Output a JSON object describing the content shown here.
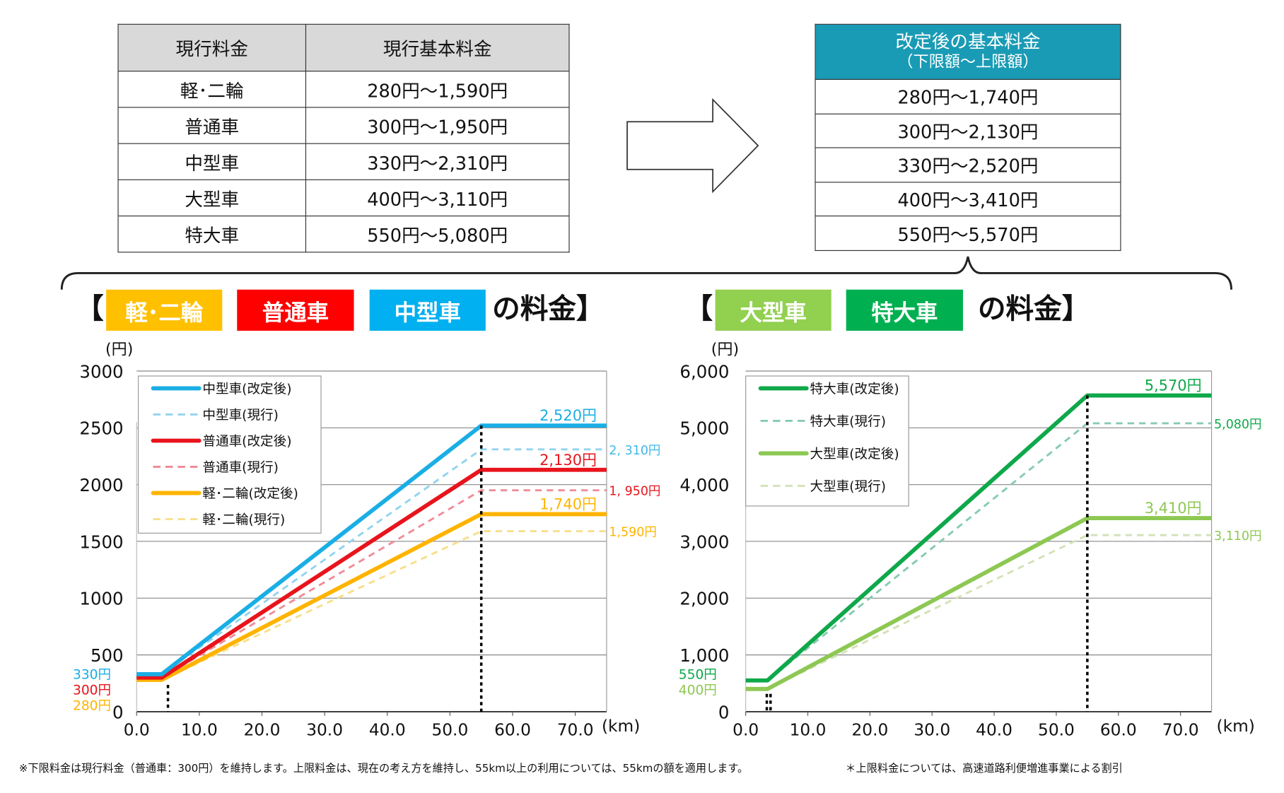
{
  "current_table": {
    "headers": [
      "現行料金",
      "現行基本料金"
    ],
    "rows": [
      [
        "軽･二輪",
        "280円～1,590円"
      ],
      [
        "普通車",
        "300円～1,950円"
      ],
      [
        "中型車",
        "330円～2,310円"
      ],
      [
        "大型車",
        "400円～3,110円"
      ],
      [
        "特大車",
        "550円～5,080円"
      ]
    ]
  },
  "new_table": {
    "header": "改定後の基本料金",
    "subheader": "（下限額～上限額）",
    "rows": [
      "280円～1,740円",
      "300円～2,130円",
      "330円～2,520円",
      "400円～3,410円",
      "550円～5,570円"
    ]
  },
  "left_heading": {
    "open": "【",
    "tags": [
      "軽･二輪",
      "普通車",
      "中型車"
    ],
    "suffix": "の料金】"
  },
  "right_heading": {
    "open": "【",
    "tags": [
      "大型車",
      "特大車"
    ],
    "suffix": "の料金】"
  },
  "tag_colors": [
    "#ffc000",
    "#ff0000",
    "#00b0f0",
    "#92d050",
    "#00b050"
  ],
  "footnotes": {
    "left": "※下限料金は現行料金（普通車：300円）を維持します。上限料金は、現在の考え方を維持し、55km以上の利用については、55kmの額を適用します。",
    "right": "＊上限料金については、高速道路利便増進事業による割引"
  },
  "chart_data": [
    {
      "type": "line",
      "ylabel": "(円)",
      "xlabel": "(km)",
      "xlim": [
        0,
        75
      ],
      "ylim": [
        0,
        3000
      ],
      "yticks": [
        "0",
        "500",
        "1000",
        "1500",
        "2000",
        "2500",
        "3000"
      ],
      "ytick_values": [
        0,
        500,
        1000,
        1500,
        2000,
        2500,
        3000
      ],
      "xticks": [
        "0.0",
        "10.0",
        "20.0",
        "30.0",
        "40.0",
        "50.0",
        "60.0",
        "70.0"
      ],
      "xtick_values": [
        0,
        10,
        20,
        30,
        40,
        50,
        60,
        70
      ],
      "grid": "horizontal",
      "legend": "top-left",
      "dotted_markers_km": [
        5,
        55
      ],
      "series": [
        {
          "name": "中型車(改定後)",
          "style": "solid",
          "color": "#1aaee5",
          "x": [
            0,
            4,
            55,
            75
          ],
          "y": [
            330,
            330,
            2520,
            2520
          ]
        },
        {
          "name": "中型車(現行)",
          "style": "dashed",
          "color": "#92d4ee",
          "x": [
            0,
            4,
            55,
            75
          ],
          "y": [
            330,
            330,
            2310,
            2310
          ]
        },
        {
          "name": "普通車(改定後)",
          "style": "solid",
          "color": "#e8141c",
          "x": [
            0,
            4,
            55,
            75
          ],
          "y": [
            300,
            300,
            2130,
            2130
          ]
        },
        {
          "name": "普通車(現行)",
          "style": "dashed",
          "color": "#ef8d97",
          "x": [
            0,
            4,
            55,
            75
          ],
          "y": [
            300,
            300,
            1950,
            1950
          ]
        },
        {
          "name": "軽･二輪(改定後)",
          "style": "solid",
          "color": "#ffb400",
          "x": [
            0,
            4,
            55,
            75
          ],
          "y": [
            280,
            280,
            1740,
            1740
          ]
        },
        {
          "name": "軽･二輪(現行)",
          "style": "dashed",
          "color": "#f7df8c",
          "x": [
            0,
            4,
            55,
            75
          ],
          "y": [
            280,
            280,
            1590,
            1590
          ]
        }
      ],
      "labels": [
        {
          "text": "2,520円",
          "color": "#1aaee5",
          "at": [
            55,
            2520
          ],
          "pos": "above-right"
        },
        {
          "text": "2, 310円",
          "color": "#3fb8e8",
          "at": [
            75,
            2310
          ],
          "pos": "right"
        },
        {
          "text": "2,130円",
          "color": "#e8141c",
          "at": [
            55,
            2130
          ],
          "pos": "above-right"
        },
        {
          "text": "1, 950円",
          "color": "#e8141c",
          "at": [
            75,
            1950
          ],
          "pos": "right"
        },
        {
          "text": "1,740円",
          "color": "#ffb400",
          "at": [
            55,
            1740
          ],
          "pos": "above-right"
        },
        {
          "text": "1,590円",
          "color": "#ffb400",
          "at": [
            75,
            1590
          ],
          "pos": "right"
        },
        {
          "text": "330円",
          "color": "#1aaee5",
          "at": [
            0,
            330
          ],
          "pos": "left"
        },
        {
          "text": "300円",
          "color": "#e8141c",
          "at": [
            0,
            300
          ],
          "pos": "left"
        },
        {
          "text": "280円",
          "color": "#ffb400",
          "at": [
            0,
            280
          ],
          "pos": "left"
        }
      ]
    },
    {
      "type": "line",
      "ylabel": "(円)",
      "xlabel": "(km)",
      "xlim": [
        0,
        75
      ],
      "ylim": [
        0,
        6000
      ],
      "yticks": [
        "0",
        "1,000",
        "2,000",
        "3,000",
        "4,000",
        "5,000",
        "6,000"
      ],
      "ytick_values": [
        0,
        1000,
        2000,
        3000,
        4000,
        5000,
        6000
      ],
      "xticks": [
        "0.0",
        "10.0",
        "20.0",
        "30.0",
        "40.0",
        "50.0",
        "60.0",
        "70.0"
      ],
      "xtick_values": [
        0,
        10,
        20,
        30,
        40,
        50,
        60,
        70
      ],
      "grid": "horizontal",
      "legend": "top-left",
      "dotted_markers_km": [
        3.4,
        4,
        55
      ],
      "series": [
        {
          "name": "特大車(改定後)",
          "style": "solid",
          "color": "#0ea84a",
          "x": [
            0,
            3.5,
            55,
            75
          ],
          "y": [
            550,
            550,
            5570,
            5570
          ]
        },
        {
          "name": "特大車(現行)",
          "style": "dashed",
          "color": "#86cbb0",
          "x": [
            0,
            3.5,
            55,
            75
          ],
          "y": [
            550,
            550,
            5080,
            5080
          ]
        },
        {
          "name": "大型車(改定後)",
          "style": "solid",
          "color": "#8dc853",
          "x": [
            0,
            3.5,
            55,
            75
          ],
          "y": [
            400,
            400,
            3410,
            3410
          ]
        },
        {
          "name": "大型車(現行)",
          "style": "dashed",
          "color": "#d3e2b8",
          "x": [
            0,
            3.5,
            55,
            75
          ],
          "y": [
            400,
            400,
            3110,
            3110
          ]
        }
      ],
      "labels": [
        {
          "text": "5,570円",
          "color": "#0ea84a",
          "at": [
            55,
            5570
          ],
          "pos": "above-right"
        },
        {
          "text": "5,080円",
          "color": "#0ea84a",
          "at": [
            75,
            5080
          ],
          "pos": "right"
        },
        {
          "text": "3,410円",
          "color": "#8dc853",
          "at": [
            55,
            3410
          ],
          "pos": "above-right"
        },
        {
          "text": "3,110円",
          "color": "#8dc853",
          "at": [
            75,
            3110
          ],
          "pos": "right"
        },
        {
          "text": "550円",
          "color": "#0ea84a",
          "at": [
            0,
            550
          ],
          "pos": "left"
        },
        {
          "text": "400円",
          "color": "#8dc853",
          "at": [
            0,
            400
          ],
          "pos": "left"
        }
      ]
    }
  ]
}
